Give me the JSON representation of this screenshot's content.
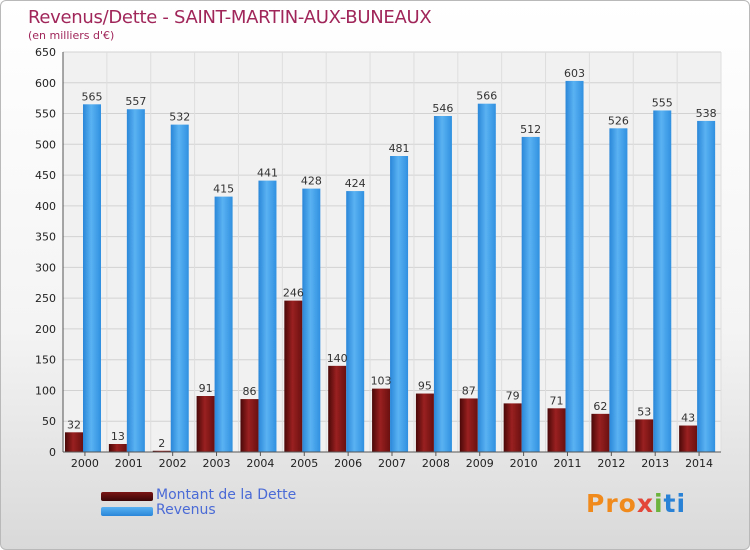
{
  "title": "Revenus/Dette - SAINT-MARTIN-AUX-BUNEAUX",
  "subtitle": "(en milliers d'€)",
  "chart_data": {
    "type": "bar",
    "categories": [
      "2000",
      "2001",
      "2002",
      "2003",
      "2004",
      "2005",
      "2006",
      "2007",
      "2008",
      "2009",
      "2010",
      "2011",
      "2012",
      "2013",
      "2014"
    ],
    "series": [
      {
        "name": "Montant de la Dette",
        "color": "#8b1a1a",
        "values": [
          32,
          13,
          2,
          91,
          86,
          246,
          140,
          103,
          95,
          87,
          79,
          71,
          62,
          53,
          43
        ]
      },
      {
        "name": "Revenus",
        "color": "#3a9ae6",
        "values": [
          565,
          557,
          532,
          415,
          441,
          428,
          424,
          481,
          546,
          566,
          512,
          603,
          526,
          555,
          538
        ]
      }
    ],
    "ylim": [
      0,
      650
    ],
    "yticks": [
      0,
      50,
      100,
      150,
      200,
      250,
      300,
      350,
      400,
      450,
      500,
      550,
      600,
      650
    ],
    "grid": true,
    "data_labels": true,
    "legend_position": "bottom-left"
  },
  "legend": [
    {
      "label": "Montant de la Dette",
      "color": "#5a0c0c"
    },
    {
      "label": "Revenus",
      "color": "#3a9ae6"
    }
  ],
  "logo": {
    "p1": "Pro",
    "p2": "x",
    "p3": "i",
    "p4": "ti"
  }
}
